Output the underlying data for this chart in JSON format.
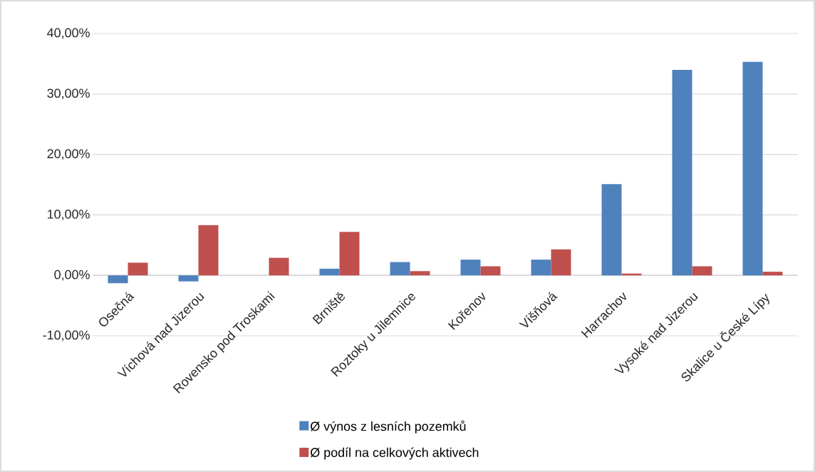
{
  "chart_data": {
    "type": "bar",
    "categories": [
      "Osečná",
      "Víchová nad Jizerou",
      "Rovensko pod Troskami",
      "Brniště",
      "Roztoky u Jilemnice",
      "Kořenov",
      "Víšňová",
      "Harrachov",
      "Vysoké nad Jizerou",
      "Skalice u České Lípy"
    ],
    "series": [
      {
        "name": "Ø výnos z lesních pozemků",
        "color": "#4f81bd",
        "values": [
          -1.3,
          -1.0,
          null,
          1.1,
          2.2,
          2.6,
          2.6,
          15.1,
          34.0,
          35.3
        ]
      },
      {
        "name": "Ø podíl na celkových aktivech",
        "color": "#c0504d",
        "values": [
          2.1,
          8.3,
          2.9,
          7.2,
          0.7,
          1.5,
          4.3,
          0.3,
          1.5,
          0.6
        ]
      }
    ],
    "ylim": [
      -10,
      40
    ],
    "yticks": [
      {
        "value": -10,
        "label": "-10,00%"
      },
      {
        "value": 0,
        "label": "0,00%"
      },
      {
        "value": 10,
        "label": "10,00%"
      },
      {
        "value": 20,
        "label": "20,00%"
      },
      {
        "value": 30,
        "label": "30,00%"
      },
      {
        "value": 40,
        "label": "40,00%"
      }
    ],
    "grid": "y",
    "legend": "bottom"
  }
}
